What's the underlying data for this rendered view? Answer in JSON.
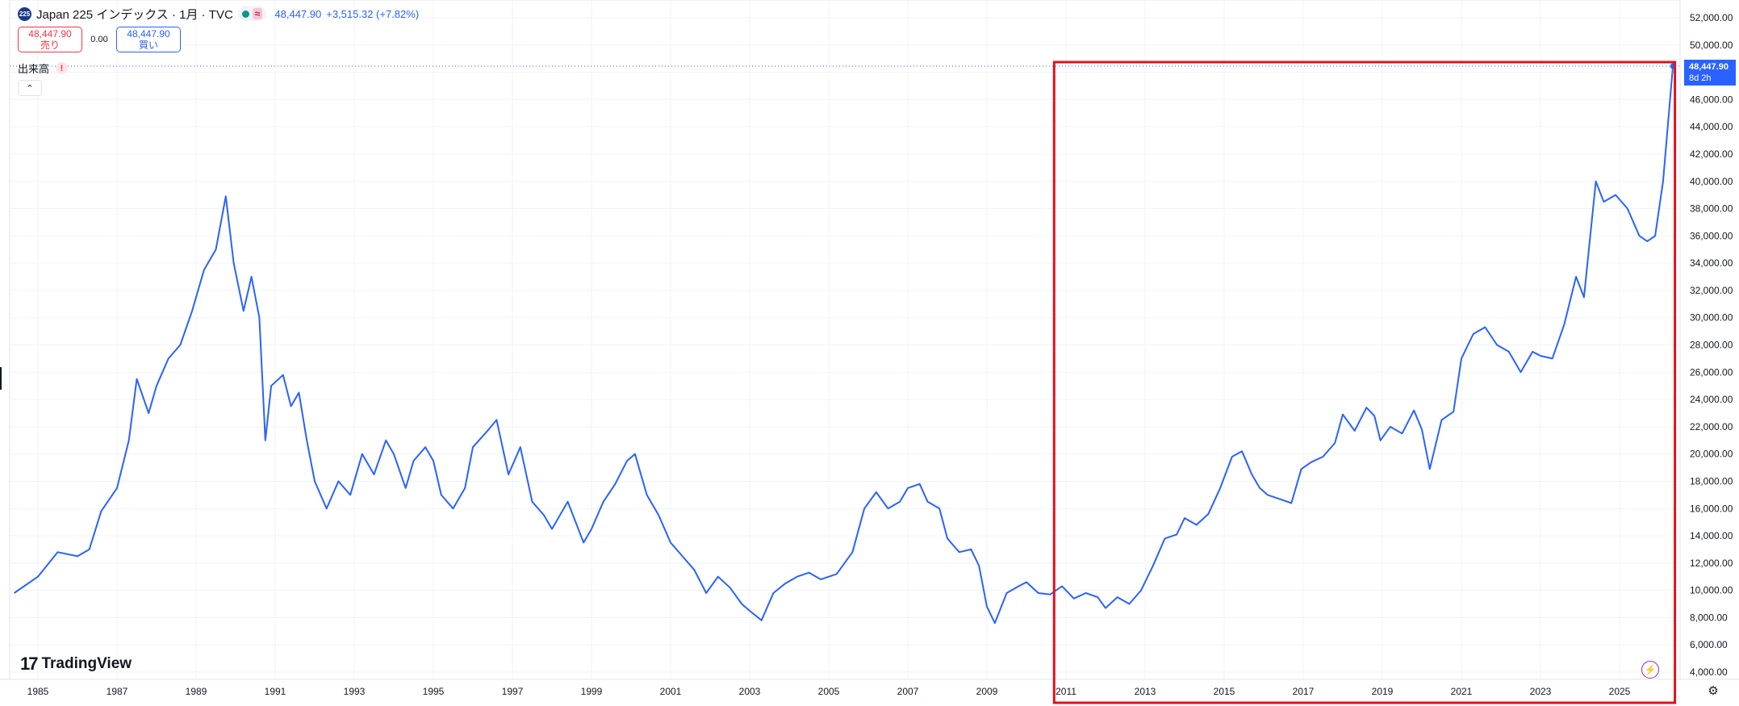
{
  "header": {
    "symbol_badge": "225",
    "title": "Japan 225 インデックス · 1月 · TVC",
    "approx_symbol": "≈",
    "price": "48,447.90",
    "change": "+3,515.32 (+7.82%)"
  },
  "trade": {
    "sell_price": "48,447.90",
    "sell_label": "売り",
    "spread": "0.00",
    "buy_price": "48,447.90",
    "buy_label": "買い"
  },
  "volume": {
    "label": "出来高",
    "warning": "!"
  },
  "collapse": {
    "glyph": "⌃"
  },
  "logo": {
    "mark": "17",
    "text": "TradingView"
  },
  "price_label": {
    "value": "48,447.90",
    "time": "8d 2h"
  },
  "icons": {
    "bolt": "⚡",
    "gear": "⚙"
  },
  "colors": {
    "line": "#2962ff",
    "highlight": "#e3101b",
    "grid": "#f0f3fa",
    "sell": "#f23645",
    "buy": "#2962ff",
    "up": "#089981"
  },
  "chart_data": {
    "type": "line",
    "title": "Japan 225 インデックス · 1月 · TVC",
    "ylim": [
      4000,
      52000
    ],
    "xlim": [
      1984.4,
      2026.45
    ],
    "grid": true,
    "y_ticks": [
      "52,000.00",
      "50,000.00",
      "48,000.00",
      "46,000.00",
      "44,000.00",
      "42,000.00",
      "40,000.00",
      "38,000.00",
      "36,000.00",
      "34,000.00",
      "32,000.00",
      "30,000.00",
      "28,000.00",
      "26,000.00",
      "24,000.00",
      "22,000.00",
      "20,000.00",
      "18,000.00",
      "16,000.00",
      "14,000.00",
      "12,000.00",
      "10,000.00",
      "8,000.00",
      "6,000.00",
      "4,000.00"
    ],
    "y_tick_values": [
      52000,
      50000,
      48000,
      46000,
      44000,
      42000,
      40000,
      38000,
      36000,
      34000,
      32000,
      30000,
      28000,
      26000,
      24000,
      22000,
      20000,
      18000,
      16000,
      14000,
      12000,
      10000,
      8000,
      6000,
      4000
    ],
    "x_ticks": [
      "1985",
      "1987",
      "1989",
      "1991",
      "1993",
      "1995",
      "1997",
      "1999",
      "2001",
      "2003",
      "2005",
      "2007",
      "2009",
      "2011",
      "2013",
      "2015",
      "2017",
      "2019",
      "2021",
      "2023",
      "2025"
    ],
    "x_tick_values": [
      1985,
      1987,
      1989,
      1991,
      1993,
      1995,
      1997,
      1999,
      2001,
      2003,
      2005,
      2007,
      2009,
      2011,
      2013,
      2015,
      2017,
      2019,
      2021,
      2023,
      2025
    ],
    "last_value": 48447.9,
    "highlight_range": [
      2010.7,
      2026.4
    ],
    "series": [
      {
        "x": [
          1984.4,
          1985.0,
          1985.5,
          1986.0,
          1986.3,
          1986.6,
          1987.0,
          1987.3,
          1987.5,
          1987.8,
          1988.0,
          1988.3,
          1988.6,
          1988.9,
          1989.2,
          1989.5,
          1989.75,
          1989.95,
          1990.2,
          1990.4,
          1990.6,
          1990.75,
          1990.9,
          1991.2,
          1991.4,
          1991.6,
          1991.8,
          1992.0,
          1992.3,
          1992.6,
          1992.9,
          1993.2,
          1993.5,
          1993.8,
          1994.0,
          1994.3,
          1994.5,
          1994.8,
          1995.0,
          1995.2,
          1995.5,
          1995.8,
          1996.0,
          1996.4,
          1996.6,
          1996.9,
          1997.2,
          1997.5,
          1997.8,
          1998.0,
          1998.4,
          1998.8,
          1999.0,
          1999.3,
          1999.6,
          1999.9,
          2000.1,
          2000.4,
          2000.7,
          2001.0,
          2001.3,
          2001.6,
          2001.9,
          2002.2,
          2002.5,
          2002.8,
          2003.0,
          2003.3,
          2003.6,
          2003.9,
          2004.2,
          2004.5,
          2004.8,
          2005.2,
          2005.6,
          2005.9,
          2006.2,
          2006.5,
          2006.8,
          2007.0,
          2007.3,
          2007.5,
          2007.8,
          2008.0,
          2008.3,
          2008.6,
          2008.8,
          2009.0,
          2009.2,
          2009.5,
          2009.8,
          2010.0,
          2010.3,
          2010.6,
          2010.9,
          2011.2,
          2011.5,
          2011.8,
          2012.0,
          2012.3,
          2012.6,
          2012.9,
          2013.2,
          2013.5,
          2013.8,
          2014.0,
          2014.3,
          2014.6,
          2014.9,
          2015.2,
          2015.45,
          2015.7,
          2015.9,
          2016.1,
          2016.4,
          2016.7,
          2016.95,
          2017.2,
          2017.5,
          2017.8,
          2018.0,
          2018.3,
          2018.6,
          2018.8,
          2018.95,
          2019.2,
          2019.5,
          2019.8,
          2020.0,
          2020.2,
          2020.5,
          2020.8,
          2021.0,
          2021.3,
          2021.6,
          2021.9,
          2022.2,
          2022.5,
          2022.8,
          2023.0,
          2023.3,
          2023.6,
          2023.9,
          2024.1,
          2024.4,
          2024.6,
          2024.9,
          2025.2,
          2025.5,
          2025.7,
          2025.9,
          2026.1,
          2026.35
        ],
        "values": [
          9800,
          11000,
          12800,
          12500,
          13000,
          15800,
          17500,
          21000,
          25500,
          23000,
          25000,
          27000,
          28000,
          30500,
          33500,
          35000,
          38900,
          34000,
          30500,
          33000,
          30000,
          21000,
          25000,
          25800,
          23500,
          24500,
          21000,
          18000,
          16000,
          18000,
          17000,
          20000,
          18500,
          21000,
          20000,
          17500,
          19500,
          20500,
          19500,
          17000,
          16000,
          17500,
          20500,
          21800,
          22500,
          18500,
          20500,
          16500,
          15500,
          14500,
          16500,
          13500,
          14500,
          16500,
          17800,
          19500,
          20000,
          17000,
          15500,
          13500,
          12500,
          11500,
          9800,
          11000,
          10200,
          9000,
          8500,
          7800,
          9800,
          10500,
          11000,
          11300,
          10800,
          11200,
          12800,
          16000,
          17200,
          16000,
          16500,
          17500,
          17800,
          16500,
          16000,
          13800,
          12800,
          13000,
          11800,
          8800,
          7600,
          9800,
          10300,
          10600,
          9800,
          9700,
          10300,
          9400,
          9800,
          9500,
          8700,
          9500,
          9000,
          10000,
          11800,
          13800,
          14100,
          15300,
          14800,
          15600,
          17500,
          19800,
          20200,
          18500,
          17500,
          17000,
          16700,
          16400,
          18900,
          19400,
          19800,
          20800,
          22900,
          21700,
          23400,
          22800,
          21000,
          22000,
          21500,
          23200,
          21800,
          18900,
          22500,
          23100,
          27000,
          28800,
          29300,
          28000,
          27500,
          26000,
          27500,
          27200,
          27000,
          29500,
          33000,
          31500,
          40000,
          38500,
          39000,
          38000,
          36000,
          35600,
          36000,
          40000,
          48447.9
        ]
      }
    ]
  }
}
